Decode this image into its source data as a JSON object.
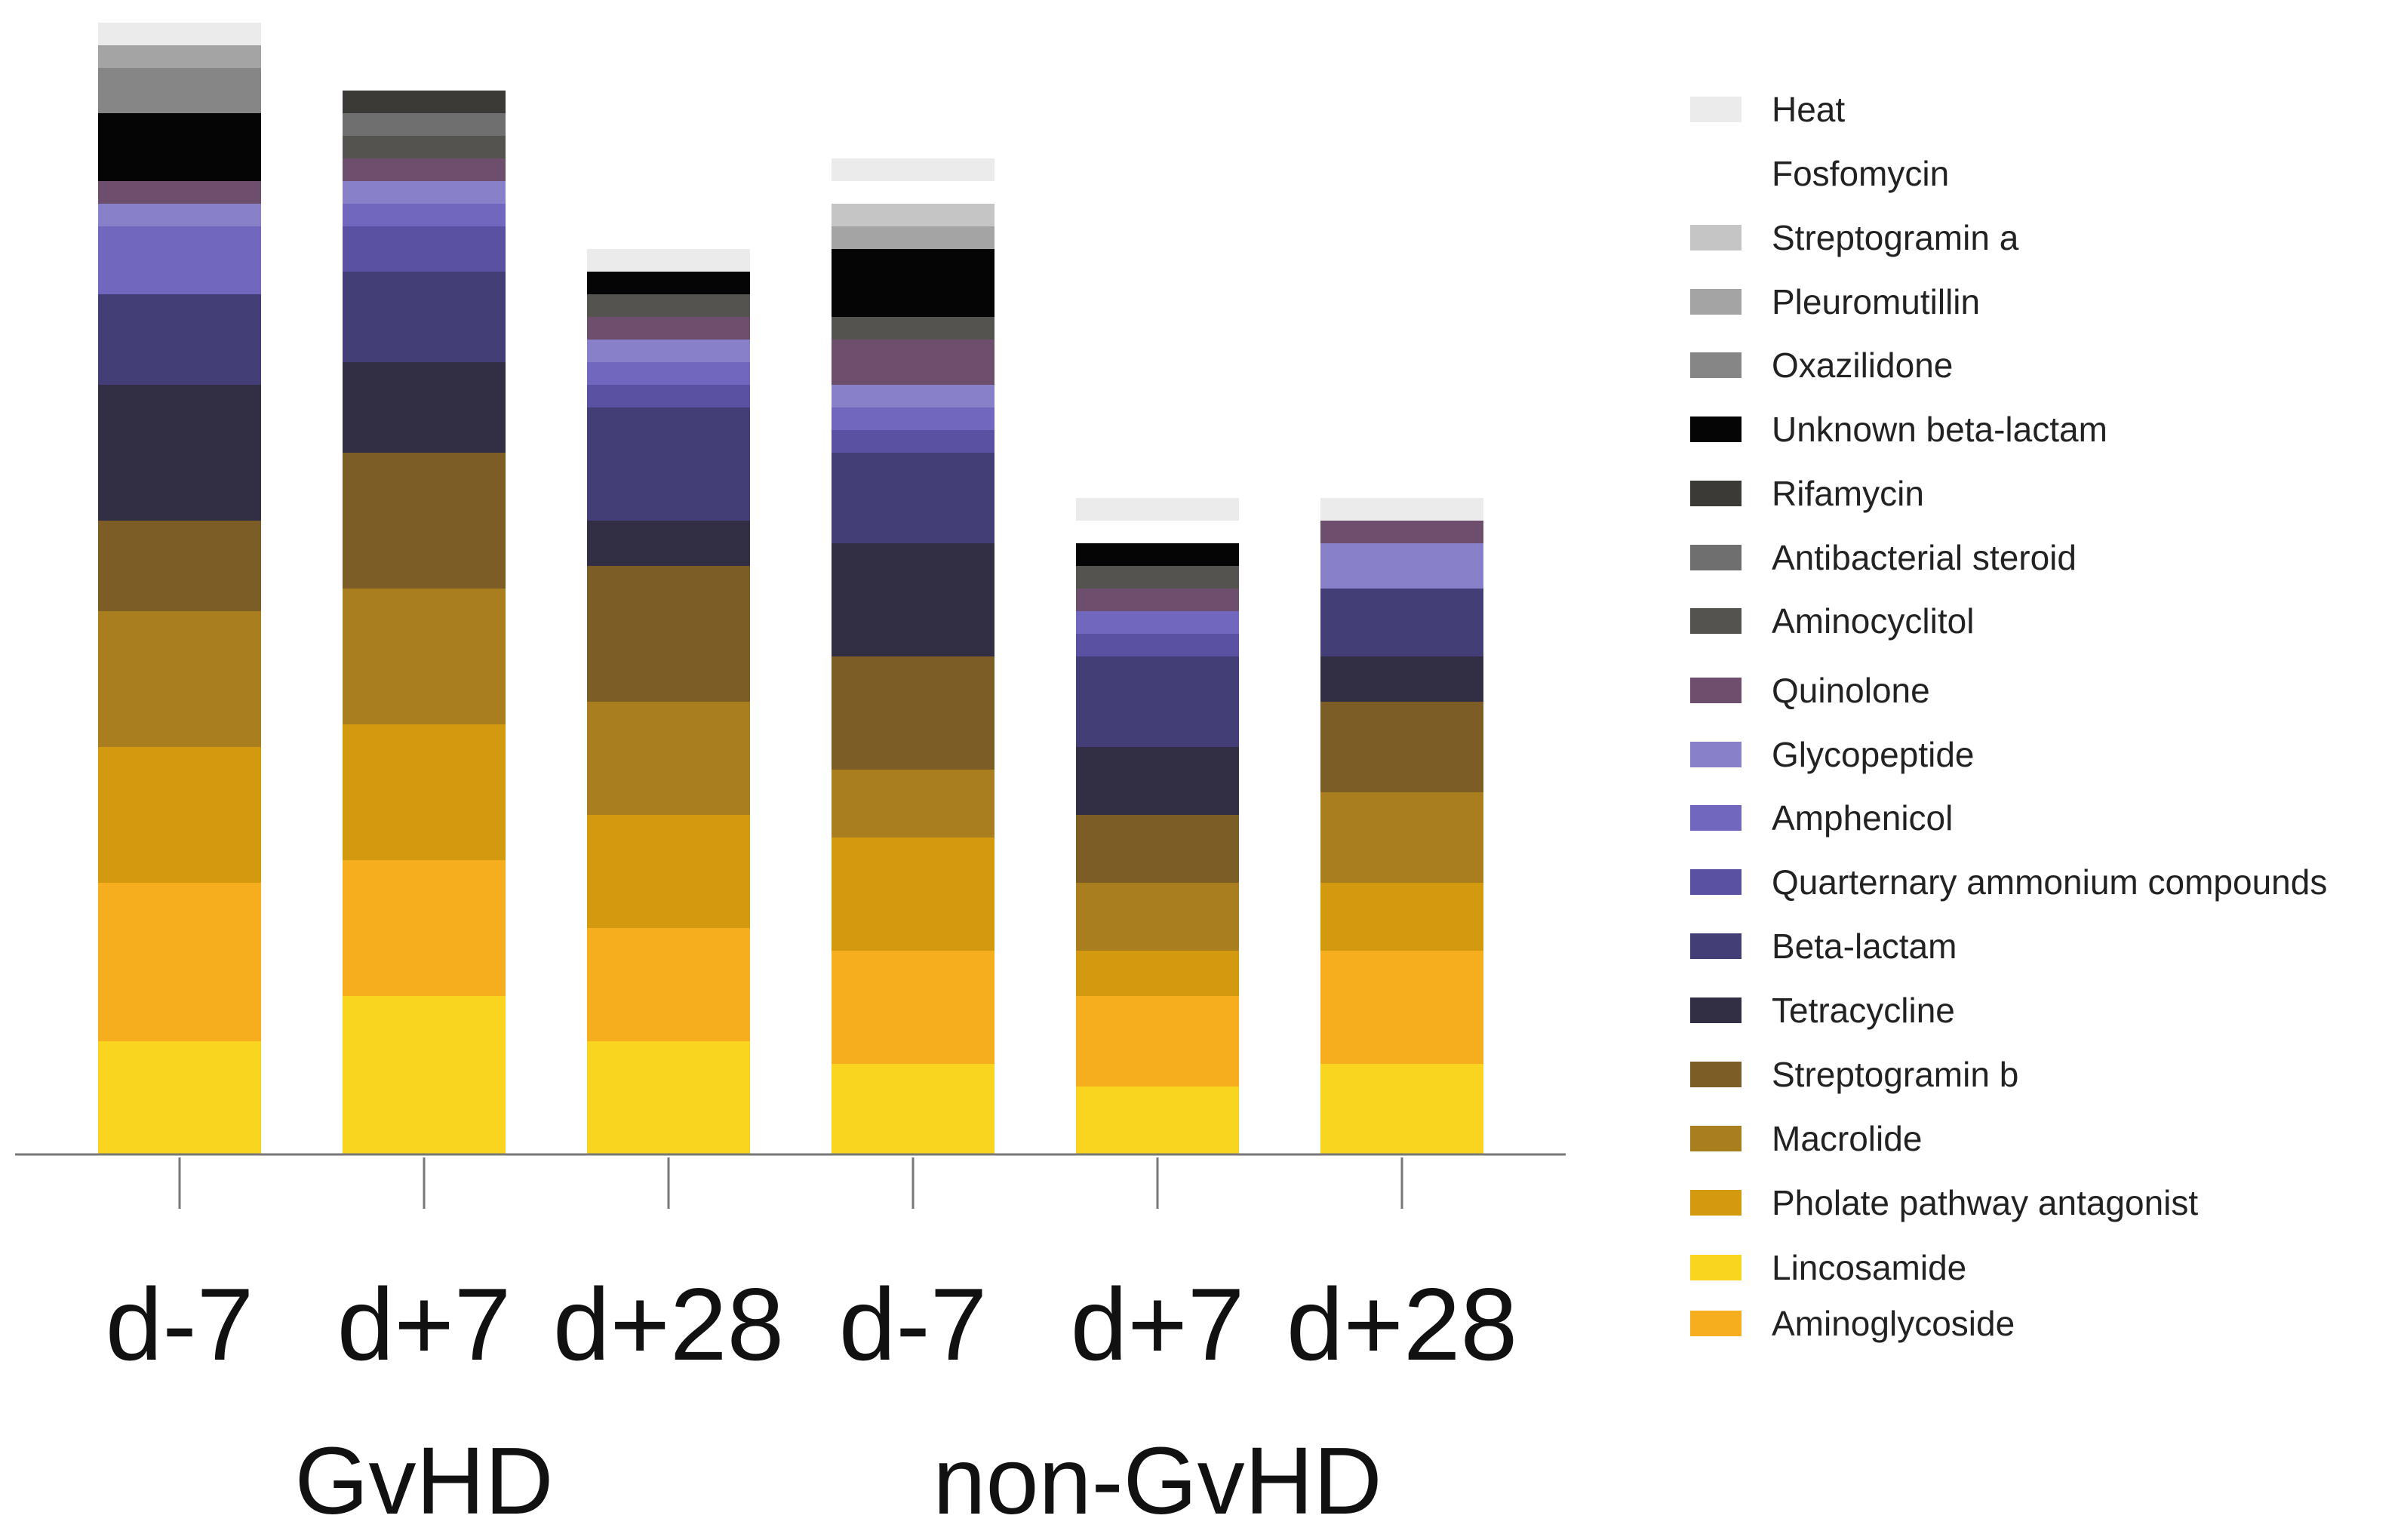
{
  "chart_data": {
    "type": "bar",
    "stacked": true,
    "title": "",
    "xlabel": "",
    "ylabel": "",
    "ylim": [
      0,
      100
    ],
    "grid": false,
    "legend_position": "right",
    "categories": [
      "d-7",
      "d+7",
      "d+28",
      "d-7",
      "d+7",
      "d+28"
    ],
    "groups": [
      {
        "label": "GvHD",
        "category_indices": [
          0,
          1,
          2
        ]
      },
      {
        "label": "non-GvHD",
        "category_indices": [
          3,
          4,
          5
        ]
      }
    ],
    "series": [
      {
        "name": "Lincosamide",
        "color": "#F9D51F",
        "values": [
          10,
          14,
          10,
          8,
          6,
          8
        ]
      },
      {
        "name": "Aminoglycoside",
        "color": "#F6AE1F",
        "values": [
          14,
          12,
          10,
          10,
          8,
          10
        ]
      },
      {
        "name": "Pholate pathway antagonist",
        "color": "#D39A10",
        "values": [
          12,
          12,
          10,
          10,
          4,
          6
        ]
      },
      {
        "name": "Macrolide",
        "color": "#A87E1F",
        "values": [
          12,
          12,
          10,
          6,
          6,
          8
        ]
      },
      {
        "name": "Streptogramin b",
        "color": "#7B5D25",
        "values": [
          8,
          12,
          12,
          10,
          6,
          8
        ]
      },
      {
        "name": "Tetracycline",
        "color": "#322F45",
        "values": [
          12,
          8,
          4,
          10,
          6,
          4
        ]
      },
      {
        "name": "Beta-lactam",
        "color": "#433E75",
        "values": [
          8,
          8,
          10,
          8,
          8,
          6
        ]
      },
      {
        "name": "Quarternary ammonium compounds",
        "color": "#5A51A2",
        "values": [
          0,
          4,
          2,
          2,
          2,
          0
        ]
      },
      {
        "name": "Amphenicol",
        "color": "#7267BE",
        "values": [
          6,
          2,
          2,
          2,
          2,
          0
        ]
      },
      {
        "name": "Glycopeptide",
        "color": "#8880C9",
        "values": [
          2,
          2,
          2,
          2,
          0,
          4
        ]
      },
      {
        "name": "Quinolone",
        "color": "#6D4F6D",
        "values": [
          2,
          2,
          2,
          4,
          2,
          2
        ]
      },
      {
        "name": "Aminocyclitol",
        "color": "#55534F",
        "values": [
          0,
          2,
          2,
          2,
          2,
          0
        ]
      },
      {
        "name": "Antibacterial steroid",
        "color": "#6F6F6F",
        "values": [
          0,
          2,
          0,
          0,
          0,
          0
        ]
      },
      {
        "name": "Rifamycin",
        "color": "#3C3A36",
        "values": [
          0,
          2,
          0,
          0,
          0,
          0
        ]
      },
      {
        "name": "Unknown beta-lactam",
        "color": "#050505",
        "values": [
          6,
          0,
          2,
          6,
          2,
          0
        ]
      },
      {
        "name": "Oxazilidone",
        "color": "#868686",
        "values": [
          4,
          0,
          0,
          0,
          0,
          0
        ]
      },
      {
        "name": "Pleuromutillin",
        "color": "#A4A4A4",
        "values": [
          2,
          0,
          0,
          2,
          0,
          0
        ]
      },
      {
        "name": "Streptogramin a",
        "color": "#C5C5C5",
        "values": [
          0,
          0,
          0,
          2,
          0,
          0
        ]
      },
      {
        "name": "Fosfomycin",
        "color": "#FFFFFF",
        "values": [
          0,
          0,
          0,
          2,
          2,
          0
        ]
      },
      {
        "name": "Heat",
        "color": "#EBEBEB",
        "values": [
          2,
          0,
          2,
          2,
          2,
          2
        ]
      }
    ],
    "legend_order": [
      "Heat",
      "Fosfomycin",
      "Streptogramin a",
      "Pleuromutillin",
      "Oxazilidone",
      "Unknown beta-lactam",
      "Rifamycin",
      "Antibacterial steroid",
      "Aminocyclitol",
      "Quinolone",
      "Glycopeptide",
      "Amphenicol",
      "Quarternary ammonium compounds",
      "Beta-lactam",
      "Tetracycline",
      "Streptogramin b",
      "Macrolide",
      "Pholate pathway antagonist",
      "Lincosamide",
      "Aminoglycoside"
    ],
    "legend_colors": {
      "Heat": "#EBEBEB",
      "Fosfomycin": "#FFFFFF",
      "Streptogramin a": "#C5C5C5",
      "Pleuromutillin": "#A4A4A4",
      "Oxazilidone": "#868686",
      "Unknown beta-lactam": "#050505",
      "Rifamycin": "#3C3A36",
      "Antibacterial steroid": "#6F6F6F",
      "Aminocyclitol": "#55534F",
      "Quinolone": "#6D4F6D",
      "Glycopeptide": "#8880C9",
      "Amphenicol": "#7267BE",
      "Quarternary ammonium compounds": "#5A51A2",
      "Beta-lactam": "#433E75",
      "Tetracycline": "#322F45",
      "Streptogramin b": "#7B5D25",
      "Macrolide": "#A87E1F",
      "Pholate pathway antagonist": "#D39A10",
      "Lincosamide": "#F9D51F",
      "Aminoglycoside": "#F6AE1F"
    }
  }
}
